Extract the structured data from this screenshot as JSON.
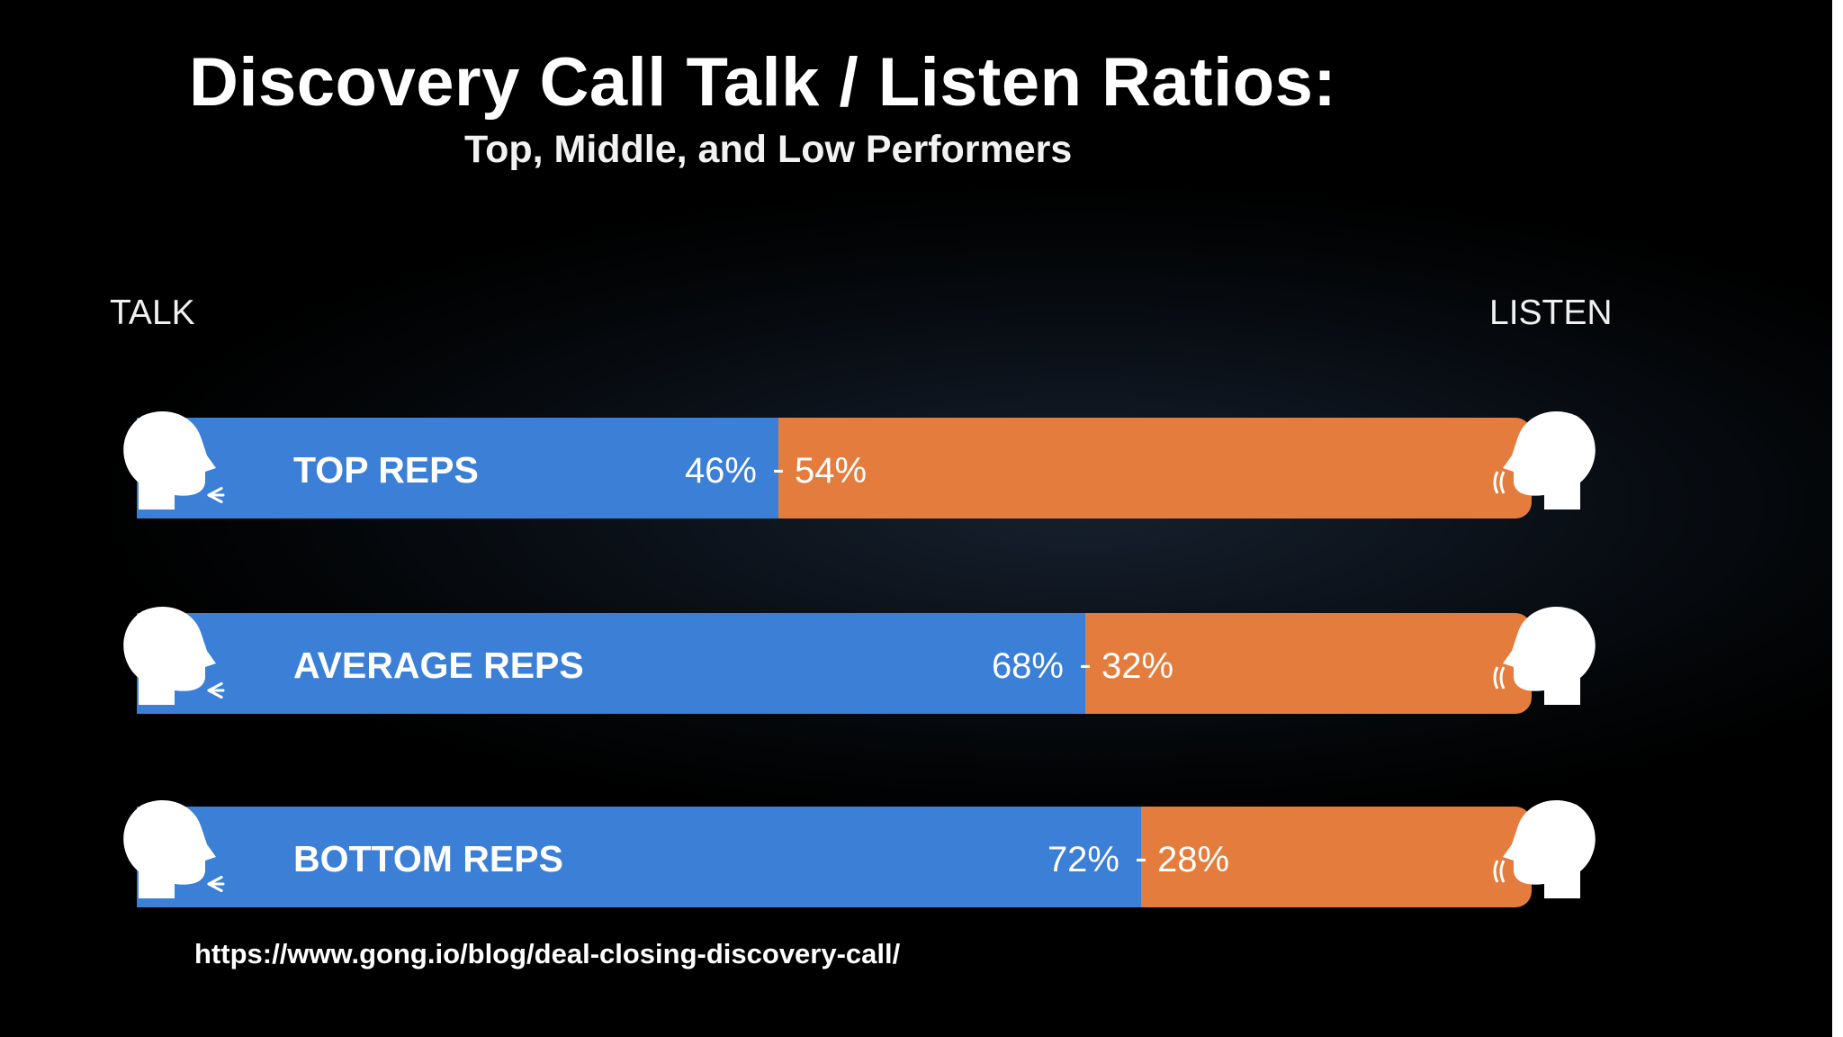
{
  "title": "Discovery Call Talk / Listen Ratios:",
  "subtitle": "Top, Middle, and Low Performers",
  "axis": {
    "left_label": "TALK",
    "right_label": "LISTEN"
  },
  "source": "https://www.gong.io/blog/deal-closing-discovery-call/",
  "colors": {
    "talk": "#3b7fd6",
    "listen": "#e47c3d",
    "text": "#ffffff",
    "background": "#000000"
  },
  "icons": {
    "left": "speaking-head-icon",
    "right": "listening-head-icon"
  },
  "chart_data": {
    "type": "bar",
    "orientation": "horizontal-stacked-100",
    "title": "Discovery Call Talk / Listen Ratios:",
    "subtitle": "Top, Middle, and Low Performers",
    "categories": [
      "TOP REPS",
      "AVERAGE REPS",
      "BOTTOM REPS"
    ],
    "series": [
      {
        "name": "TALK",
        "values": [
          46,
          68,
          72
        ],
        "labels": [
          "46%",
          "68%",
          "72%"
        ]
      },
      {
        "name": "LISTEN",
        "values": [
          54,
          32,
          28
        ],
        "labels": [
          "54%",
          "32%",
          "28%"
        ]
      }
    ],
    "separator": "-",
    "xlim": [
      0,
      100
    ],
    "grid": false,
    "legend": "none"
  }
}
